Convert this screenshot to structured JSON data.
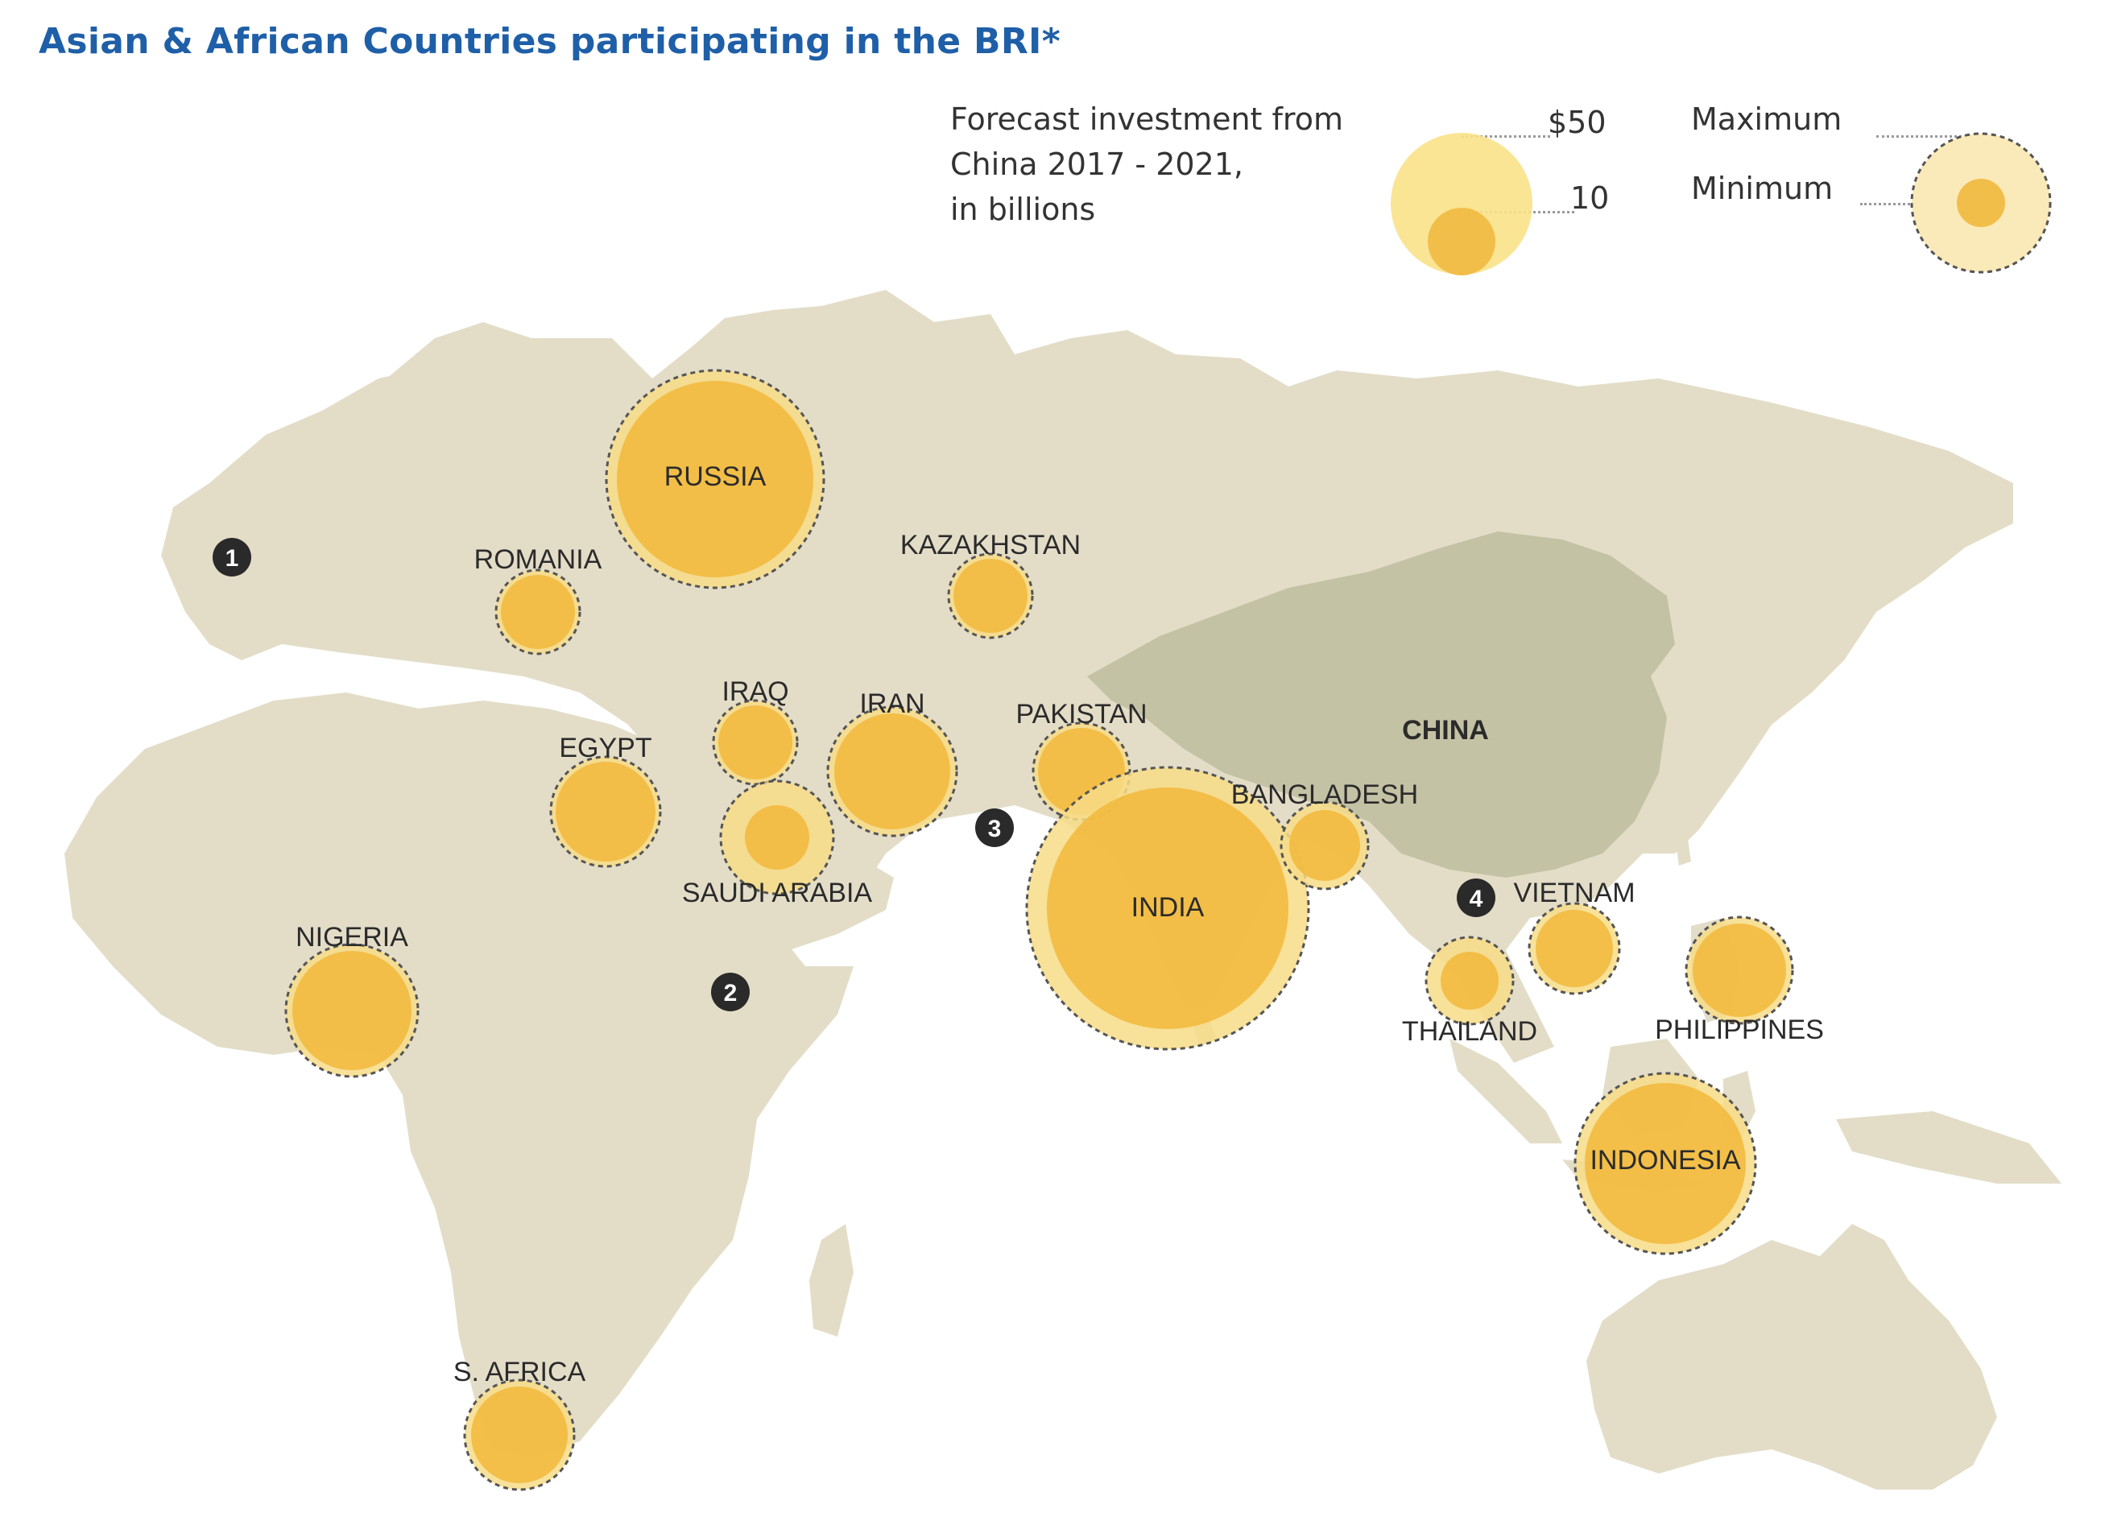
{
  "title": "Asian & African Countries participating in the BRI*",
  "legend": {
    "description_lines": [
      "Forecast investment from",
      "China 2017 - 2021,",
      "in billions"
    ],
    "size_large_label": "$50",
    "size_small_label": "10",
    "ring_max_label": "Maximum",
    "ring_min_label": "Minimum"
  },
  "colors": {
    "bubble_fill": "#f2b83a",
    "bubble_max_ring": "#f7dc87",
    "land": "#e3ddc8",
    "china": "#c4c2a4",
    "title": "#1f5fa8"
  },
  "china_label": "CHINA",
  "countries": [
    {
      "id": "russia",
      "label": "RUSSIA"
    },
    {
      "id": "romania",
      "label": "ROMANIA"
    },
    {
      "id": "kazakhstan",
      "label": "KAZAKHSTAN"
    },
    {
      "id": "iraq",
      "label": "IRAQ"
    },
    {
      "id": "iran",
      "label": "IRAN"
    },
    {
      "id": "pakistan",
      "label": "PAKISTAN"
    },
    {
      "id": "egypt",
      "label": "EGYPT"
    },
    {
      "id": "saudi-arabia",
      "label": "SAUDI ARABIA"
    },
    {
      "id": "india",
      "label": "INDIA"
    },
    {
      "id": "bangladesh",
      "label": "BANGLADESH"
    },
    {
      "id": "vietnam",
      "label": "VIETNAM"
    },
    {
      "id": "thailand",
      "label": "THAILAND"
    },
    {
      "id": "philippines",
      "label": "PHILIPPINES"
    },
    {
      "id": "indonesia",
      "label": "INDONESIA"
    },
    {
      "id": "nigeria",
      "label": "NIGERIA"
    },
    {
      "id": "s-africa",
      "label": "S. AFRICA"
    }
  ],
  "markers": [
    "1",
    "2",
    "3",
    "4"
  ]
}
